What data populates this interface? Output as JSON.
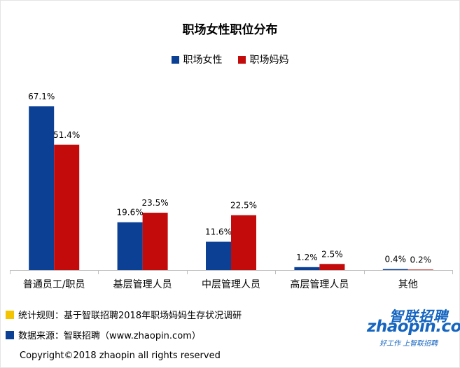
{
  "colors": {
    "series1": "#0b4095",
    "series2": "#c40b0b",
    "note_marker_yellow": "#f5c400",
    "note_marker_blue": "#0b4095",
    "logo_blue": "#1565c0",
    "axis": "#bfbfbf"
  },
  "chart_data": {
    "type": "bar",
    "title": "职场女性职位分布",
    "categories": [
      "普通员工/职员",
      "基层管理人员",
      "中层管理人员",
      "高层管理人员",
      "其他"
    ],
    "series": [
      {
        "name": "职场女性",
        "values": [
          67.1,
          19.6,
          11.6,
          1.2,
          0.4
        ],
        "labels": [
          "67.1%",
          "19.6%",
          "11.6%",
          "1.2%",
          "0.4%"
        ]
      },
      {
        "name": "职场妈妈",
        "values": [
          51.4,
          23.5,
          22.5,
          2.5,
          0.2
        ],
        "labels": [
          "51.4%",
          "23.5%",
          "22.5%",
          "2.5%",
          "0.2%"
        ]
      }
    ],
    "ylim": [
      0,
      67.1
    ],
    "legend": "top",
    "grid": false
  },
  "notes": [
    {
      "icon": "yellow-square-icon",
      "text": "统计规则：基于智联招聘2018年职场妈妈生存状况调研"
    },
    {
      "icon": "blue-square-icon",
      "text": "数据来源：智联招聘（www.zhaopin.com）"
    }
  ],
  "logo": {
    "cn": "智联招聘",
    "en": "zhaopin.com",
    "slogan": "好工作  上智联招聘"
  },
  "copyright": "Copyright©2018 zhaopin all rights reserved"
}
